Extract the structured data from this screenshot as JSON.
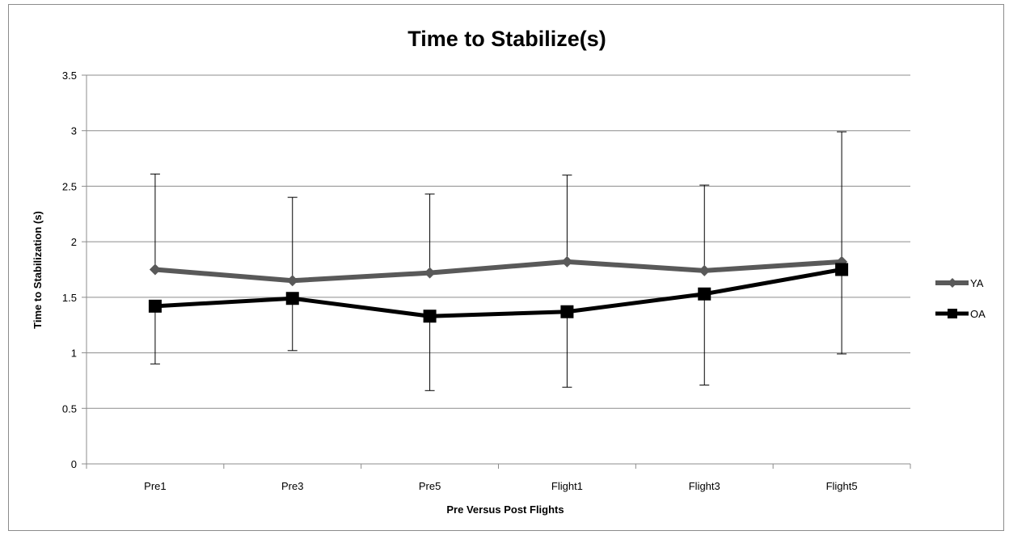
{
  "chart_data": {
    "type": "line",
    "title": "Time to Stabilize(s)",
    "xlabel": "Pre Versus Post Flights",
    "ylabel": "Time to Stabilization (s)",
    "categories": [
      "Pre1",
      "Pre3",
      "Pre5",
      "Flight1",
      "Flight3",
      "Flight5"
    ],
    "ylim": [
      0,
      3.5
    ],
    "yticks": [
      "0",
      "0.5",
      "1",
      "1.5",
      "2",
      "2.5",
      "3",
      "3.5"
    ],
    "grid": true,
    "legend_position": "right",
    "series": [
      {
        "name": "YA",
        "color": "#595959",
        "marker": "diamond",
        "values": [
          1.75,
          1.65,
          1.72,
          1.82,
          1.74,
          1.82
        ],
        "error_upper": [
          2.61,
          2.4,
          2.43,
          2.6,
          2.51,
          2.99
        ]
      },
      {
        "name": "OA",
        "color": "#000000",
        "marker": "square",
        "values": [
          1.42,
          1.49,
          1.33,
          1.37,
          1.53,
          1.75
        ],
        "error_lower": [
          0.9,
          1.02,
          0.66,
          0.69,
          0.71,
          0.99
        ]
      }
    ]
  }
}
